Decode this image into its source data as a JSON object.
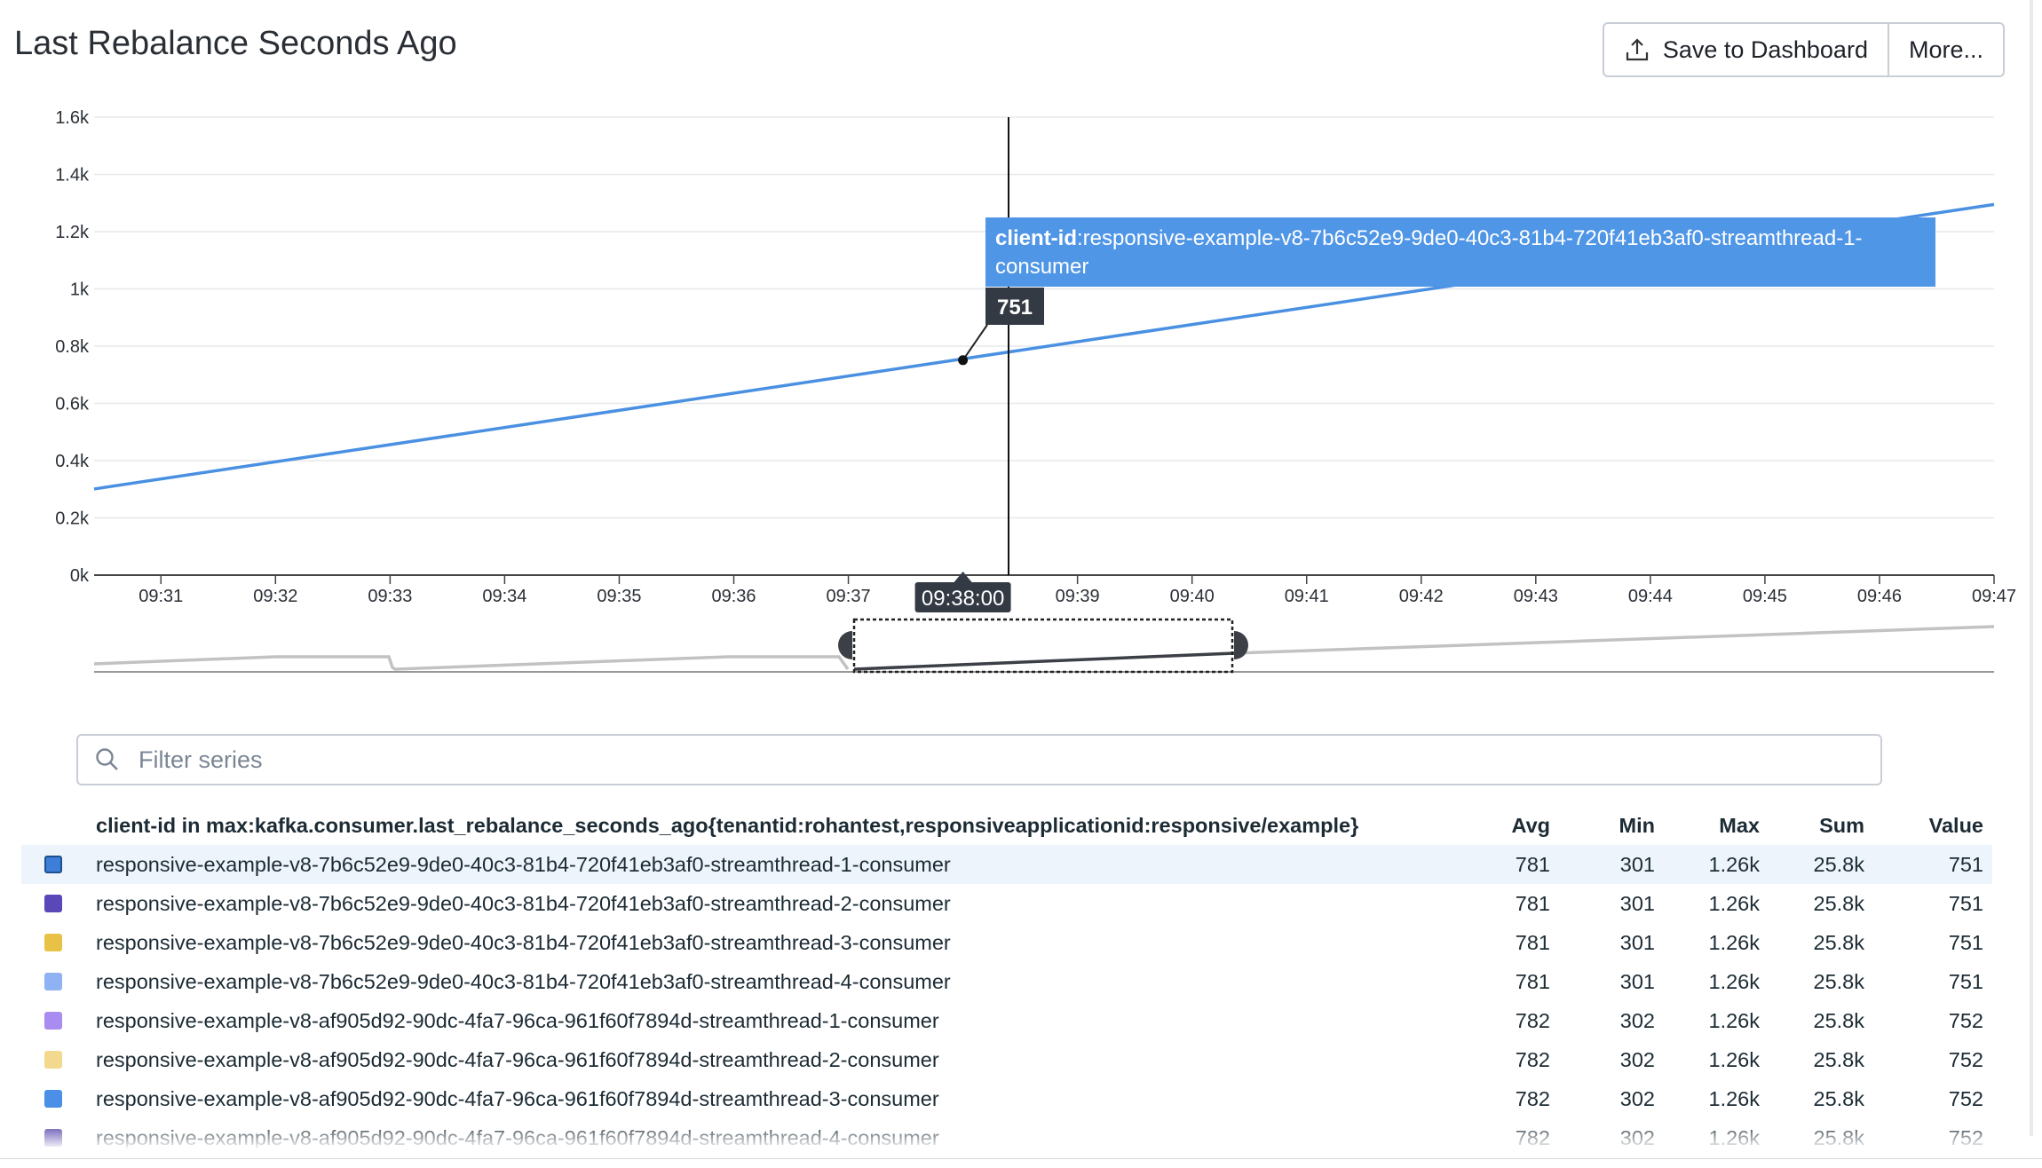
{
  "widget": {
    "title": "Last Rebalance Seconds Ago",
    "save_label": "Save to Dashboard",
    "more_label": "More..."
  },
  "chart_data": {
    "type": "line",
    "ylim": [
      0,
      1600
    ],
    "y_ticks": [
      "0k",
      "0.2k",
      "0.4k",
      "0.6k",
      "0.8k",
      "1k",
      "1.2k",
      "1.4k",
      "1.6k"
    ],
    "x_ticks": [
      "09:31",
      "09:32",
      "09:33",
      "09:34",
      "09:35",
      "09:36",
      "09:37",
      "09:38",
      "09:39",
      "09:40",
      "09:41",
      "09:42",
      "09:43",
      "09:44",
      "09:45",
      "09:46",
      "09:47"
    ],
    "grid": true,
    "series": [
      {
        "x": [
          "09:30:25",
          "09:47:00"
        ],
        "values": [
          301,
          1295
        ]
      }
    ],
    "hover": {
      "time_label": "09:38:00",
      "value_label": "751",
      "tag_key": "client-id",
      "tag_value": ":responsive-example-v8-7b6c52e9-9de0-40c3-81b4-720f41eb3af0-streamthread-1-consumer"
    },
    "colors": {
      "line": "#4a90e2",
      "tooltip": "#5096e6",
      "crosshair": "#111111"
    }
  },
  "filter": {
    "placeholder": "Filter series",
    "value": ""
  },
  "legend": {
    "header": {
      "name": "client-id in max:kafka.consumer.last_rebalance_seconds_ago{tenantid:rohantest,responsiveapplicationid:responsive/example}",
      "avg": "Avg",
      "min": "Min",
      "max": "Max",
      "sum": "Sum",
      "value": "Value"
    },
    "rows": [
      {
        "color": "#3d7fd8",
        "name": "responsive-example-v8-7b6c52e9-9de0-40c3-81b4-720f41eb3af0-streamthread-1-consumer",
        "avg": "781",
        "min": "301",
        "max": "1.26k",
        "sum": "25.8k",
        "value": "751"
      },
      {
        "color": "#5a47b8",
        "name": "responsive-example-v8-7b6c52e9-9de0-40c3-81b4-720f41eb3af0-streamthread-2-consumer",
        "avg": "781",
        "min": "301",
        "max": "1.26k",
        "sum": "25.8k",
        "value": "751"
      },
      {
        "color": "#e7c247",
        "name": "responsive-example-v8-7b6c52e9-9de0-40c3-81b4-720f41eb3af0-streamthread-3-consumer",
        "avg": "781",
        "min": "301",
        "max": "1.26k",
        "sum": "25.8k",
        "value": "751"
      },
      {
        "color": "#8fb2f2",
        "name": "responsive-example-v8-7b6c52e9-9de0-40c3-81b4-720f41eb3af0-streamthread-4-consumer",
        "avg": "781",
        "min": "301",
        "max": "1.26k",
        "sum": "25.8k",
        "value": "751"
      },
      {
        "color": "#a88cf0",
        "name": "responsive-example-v8-af905d92-90dc-4fa7-96ca-961f60f7894d-streamthread-1-consumer",
        "avg": "782",
        "min": "302",
        "max": "1.26k",
        "sum": "25.8k",
        "value": "752"
      },
      {
        "color": "#f3d98d",
        "name": "responsive-example-v8-af905d92-90dc-4fa7-96ca-961f60f7894d-streamthread-2-consumer",
        "avg": "782",
        "min": "302",
        "max": "1.26k",
        "sum": "25.8k",
        "value": "752"
      },
      {
        "color": "#4b90e6",
        "name": "responsive-example-v8-af905d92-90dc-4fa7-96ca-961f60f7894d-streamthread-3-consumer",
        "avg": "782",
        "min": "302",
        "max": "1.26k",
        "sum": "25.8k",
        "value": "752"
      },
      {
        "color": "#4f3ea8",
        "name": "responsive-example-v8-af905d92-90dc-4fa7-96ca-961f60f7894d-streamthread-4-consumer",
        "avg": "782",
        "min": "302",
        "max": "1.26k",
        "sum": "25.8k",
        "value": "752"
      }
    ]
  }
}
